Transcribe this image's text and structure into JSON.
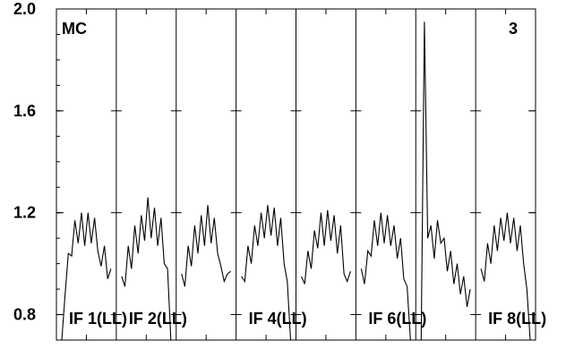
{
  "chart_data": {
    "type": "line",
    "ylim": [
      0.7,
      2.0
    ],
    "yticks": [
      {
        "value": 0.8,
        "label": "0.8"
      },
      {
        "value": 1.2,
        "label": "1.2"
      },
      {
        "value": 1.6,
        "label": "1.6"
      },
      {
        "value": 2.0,
        "label": "2.0"
      }
    ],
    "corner_labels": {
      "left": "MC",
      "right": "3"
    },
    "grid": false,
    "panels": [
      {
        "label": "IF 1(LL)",
        "values": [
          0.7,
          0.88,
          1.04,
          1.03,
          1.17,
          1.08,
          1.2,
          1.07,
          1.2,
          1.08,
          1.18,
          1.05,
          0.99,
          1.07,
          0.94,
          0.98
        ]
      },
      {
        "label": "IF 2(LL)",
        "values": [
          0.95,
          0.91,
          1.07,
          0.98,
          1.15,
          1.04,
          1.19,
          1.09,
          1.26,
          1.1,
          1.22,
          1.07,
          1.18,
          1.0,
          0.98,
          0.7
        ]
      },
      {
        "label": "",
        "values": [
          0.96,
          0.91,
          1.07,
          0.99,
          1.15,
          1.04,
          1.19,
          1.07,
          1.23,
          1.08,
          1.18,
          1.04,
          0.99,
          0.93,
          0.96,
          0.97
        ]
      },
      {
        "label": "IF 4(LL)",
        "values": [
          0.95,
          0.93,
          1.07,
          1.0,
          1.15,
          1.07,
          1.2,
          1.1,
          1.23,
          1.11,
          1.22,
          1.07,
          1.18,
          1.0,
          0.93,
          0.7
        ]
      },
      {
        "label": "",
        "values": [
          0.95,
          0.92,
          1.05,
          0.98,
          1.13,
          1.06,
          1.2,
          1.07,
          1.21,
          1.09,
          1.19,
          1.04,
          1.15,
          0.96,
          0.93,
          0.97
        ]
      },
      {
        "label": "IF 6(LL)",
        "values": [
          0.98,
          0.92,
          1.05,
          1.03,
          1.17,
          1.07,
          1.2,
          1.08,
          1.19,
          1.07,
          1.15,
          1.02,
          1.1,
          0.94,
          0.91,
          0.7
        ]
      },
      {
        "label": "",
        "values": [
          0.7,
          1.95,
          1.1,
          1.15,
          1.02,
          1.17,
          1.08,
          1.1,
          0.97,
          1.05,
          0.92,
          1.0,
          0.88,
          0.95,
          0.83,
          0.9
        ]
      },
      {
        "label": "IF 8(LL)",
        "values": [
          0.98,
          0.93,
          1.08,
          1.0,
          1.15,
          1.05,
          1.18,
          1.09,
          1.2,
          1.08,
          1.18,
          1.05,
          1.15,
          1.0,
          0.9,
          0.7
        ]
      }
    ]
  }
}
